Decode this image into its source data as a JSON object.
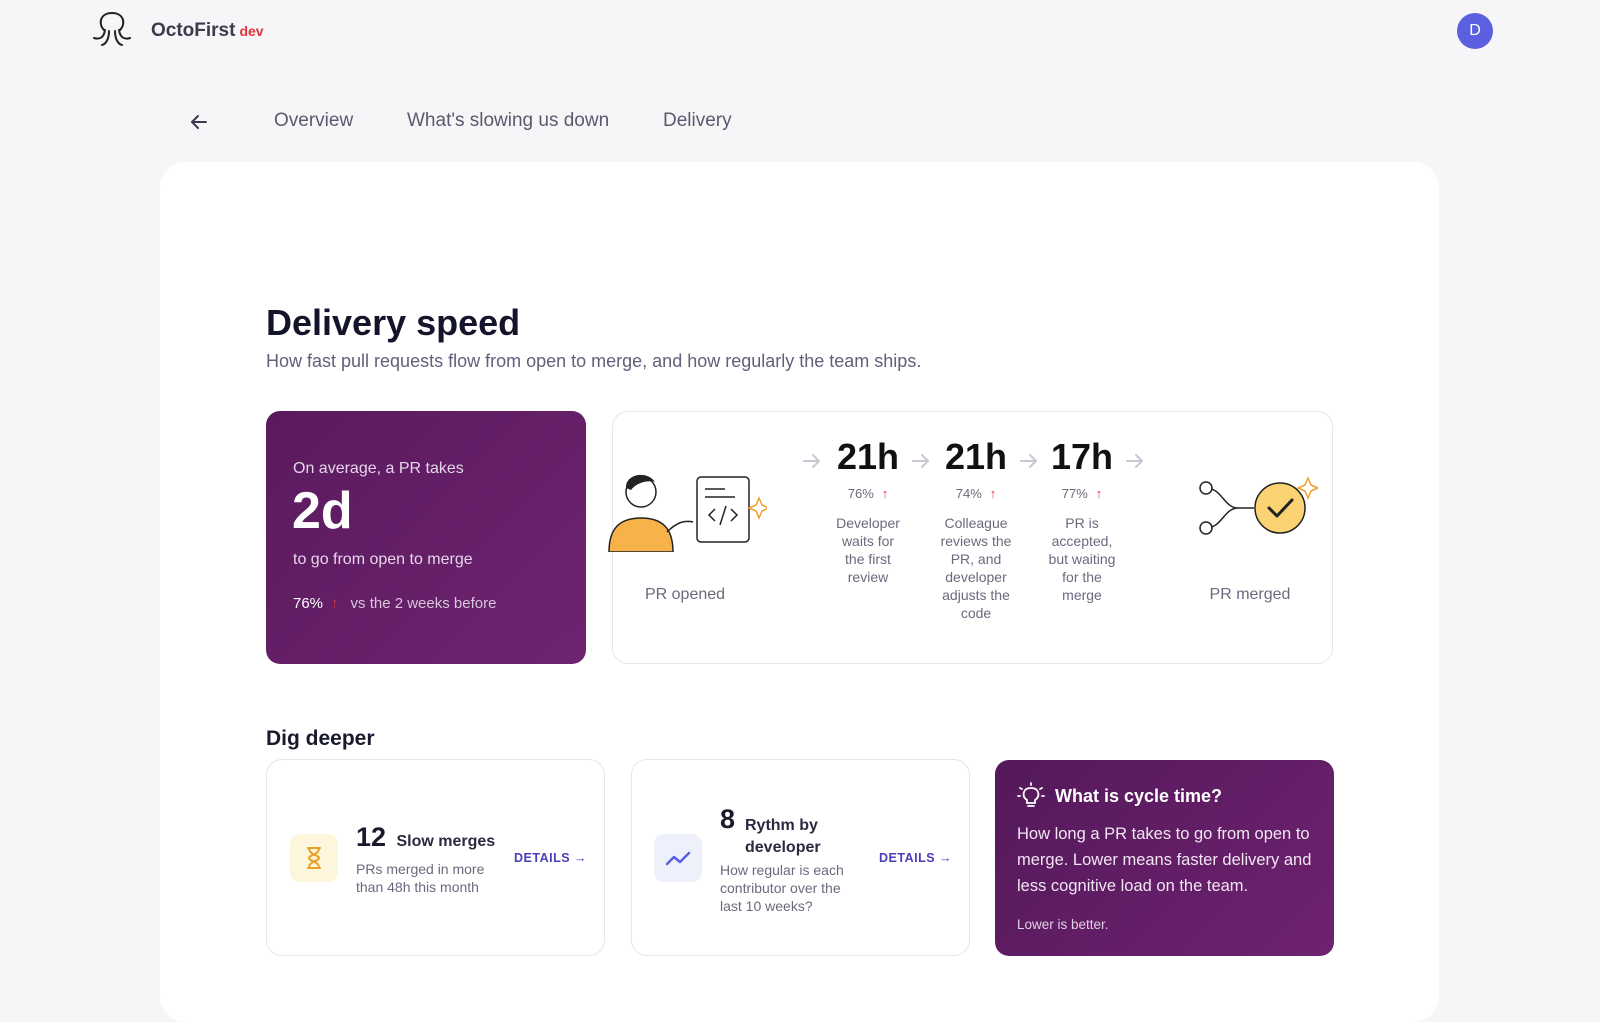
{
  "header": {
    "brand": "OctoFirst",
    "env": "dev",
    "avatar": "D"
  },
  "tabs": [
    "Overview",
    "What's slowing us down",
    "Delivery"
  ],
  "section": {
    "title": "Delivery speed",
    "subtitle": "How fast pull requests flow from open to merge, and how regularly the team ships."
  },
  "summary": {
    "lead": "On average, a PR takes",
    "value": "2d",
    "caption": "to go from open to merge",
    "change": "76%",
    "comparison": "vs the 2 weeks before"
  },
  "flow": {
    "start": "PR opened",
    "end": "PR merged",
    "steps": [
      {
        "value": "21h",
        "change": "76%",
        "description": "Developer waits for the first review"
      },
      {
        "value": "21h",
        "change": "74%",
        "description": "Colleague reviews the PR, and developer adjusts the code"
      },
      {
        "value": "17h",
        "change": "77%",
        "description": "PR is accepted, but waiting for the merge"
      }
    ]
  },
  "dig_deeper": {
    "title": "Dig deeper",
    "cards": [
      {
        "value": "12",
        "title": "Slow merges",
        "description": "PRs merged in more than 48h this month",
        "action": "DETAILS"
      },
      {
        "value": "8",
        "title": "Rythm by developer",
        "description": "How regular is each contributor over the last 10 weeks?",
        "action": "DETAILS"
      }
    ],
    "info": {
      "title": "What is cycle time?",
      "body": "How long a PR takes to go from open to merge. Lower means faster delivery and less cognitive load on the team.",
      "note": "Lower is better."
    }
  }
}
